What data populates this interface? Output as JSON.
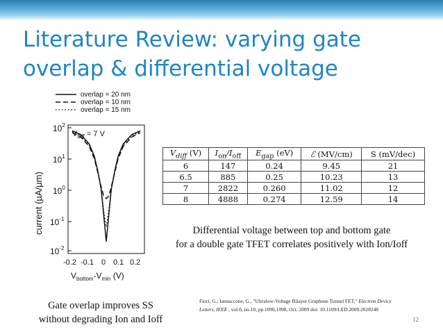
{
  "slide": {
    "title_line1": "Literature Review: varying gate",
    "title_line2": "overlap & differential voltage",
    "page_number": "12",
    "accent_color": "#1d86c3"
  },
  "figure": {
    "legend": [
      "overlap = 20 nm",
      "overlap = 10 nm",
      "overlap = 15 nm"
    ],
    "annotation_main": "V",
    "annotation_sub": "diff",
    "annotation_value": " = 7 V",
    "ylabel": "current (µA/µm)",
    "xlabel_main": "V",
    "xlabel_sub1": "bottom",
    "xlabel_mid": "-V",
    "xlabel_sub2": "min",
    "xlabel_end": " (V)",
    "y_ticks": [
      {
        "base": "10",
        "exp": "2"
      },
      {
        "base": "10",
        "exp": "1"
      },
      {
        "base": "10",
        "exp": "0"
      },
      {
        "base": "10",
        "exp": "-1"
      },
      {
        "base": "10",
        "exp": "-2"
      }
    ],
    "x_ticks": [
      "-0.2",
      "-0.1",
      "0",
      "0.1",
      "0.2"
    ]
  },
  "chart_data": {
    "type": "line",
    "xlabel": "Vbottom-Vmin (V)",
    "ylabel": "current (µA/µm)",
    "xlim": [
      -0.2,
      0.2
    ],
    "ylim": [
      0.01,
      100
    ],
    "y_scale": "log",
    "annotation": "Vdiff = 7 V",
    "legend_position": "top",
    "series": [
      {
        "name": "overlap = 20 nm",
        "style": "solid",
        "x": [
          -0.2,
          -0.15,
          -0.1,
          -0.07,
          -0.05,
          -0.03,
          -0.015,
          0,
          0.015,
          0.03,
          0.05,
          0.07,
          0.1,
          0.15,
          0.2
        ],
        "y": [
          80,
          60,
          30,
          12,
          4,
          1,
          0.15,
          0.02,
          0.15,
          1,
          4,
          12,
          30,
          60,
          80
        ]
      },
      {
        "name": "overlap = 10 nm",
        "style": "dashed",
        "x": [
          -0.2,
          -0.15,
          -0.1,
          -0.07,
          -0.05,
          -0.03,
          -0.015,
          0,
          0.015,
          0.03,
          0.05,
          0.07,
          0.1,
          0.15,
          0.2
        ],
        "y": [
          70,
          50,
          25,
          10,
          3.5,
          1.2,
          0.6,
          0.5,
          0.6,
          1.2,
          3.5,
          10,
          25,
          50,
          70
        ]
      },
      {
        "name": "overlap = 15 nm",
        "style": "dotted",
        "x": [
          -0.2,
          -0.15,
          -0.1,
          -0.07,
          -0.05,
          -0.03,
          -0.015,
          0,
          0.015,
          0.03,
          0.05,
          0.07,
          0.1,
          0.15,
          0.2
        ],
        "y": [
          75,
          55,
          27,
          11,
          3.8,
          1.0,
          0.2,
          0.06,
          0.2,
          1.0,
          3.8,
          11,
          27,
          55,
          75
        ]
      }
    ]
  },
  "table": {
    "headers": [
      {
        "main": "V",
        "sub": "diff",
        "rest": " (V)"
      },
      {
        "main": "I",
        "sub": "on",
        "mid": "/I",
        "sub2": "off"
      },
      {
        "main": "E",
        "sub": "gap",
        "rest": " (eV)"
      },
      {
        "main": "ℰ",
        "rest": " (MV/cm)"
      },
      {
        "main": "S (mV/dec)"
      }
    ],
    "rows": [
      [
        "6",
        "147",
        "0.24",
        "9.45",
        "21"
      ],
      [
        "6.5",
        "885",
        "0.25",
        "10.23",
        "13"
      ],
      [
        "7",
        "2822",
        "0.260",
        "11.02",
        "12"
      ],
      [
        "8",
        "4888",
        "0.274",
        "12.59",
        "14"
      ]
    ]
  },
  "captions": {
    "diff_line1": "Differential voltage between top and bottom gate",
    "diff_line2": "for a double gate TFET correlates positively with Ion/Ioff",
    "gate_line1": "Gate overlap improves SS",
    "gate_line2": "without degrading Ion and Ioff"
  },
  "reference": {
    "part1": "Fiori, G.; Iannaccone, G., \"Ultralow-Voltage Bilayer Graphene Tunnel FET,\" ",
    "journal": "Electron Device Letters, IEEE",
    "part2": " , vol.0, no.10, pp.1096,1098, Oct. 2009 doi: 10.1109/LED.2009.2028248"
  }
}
